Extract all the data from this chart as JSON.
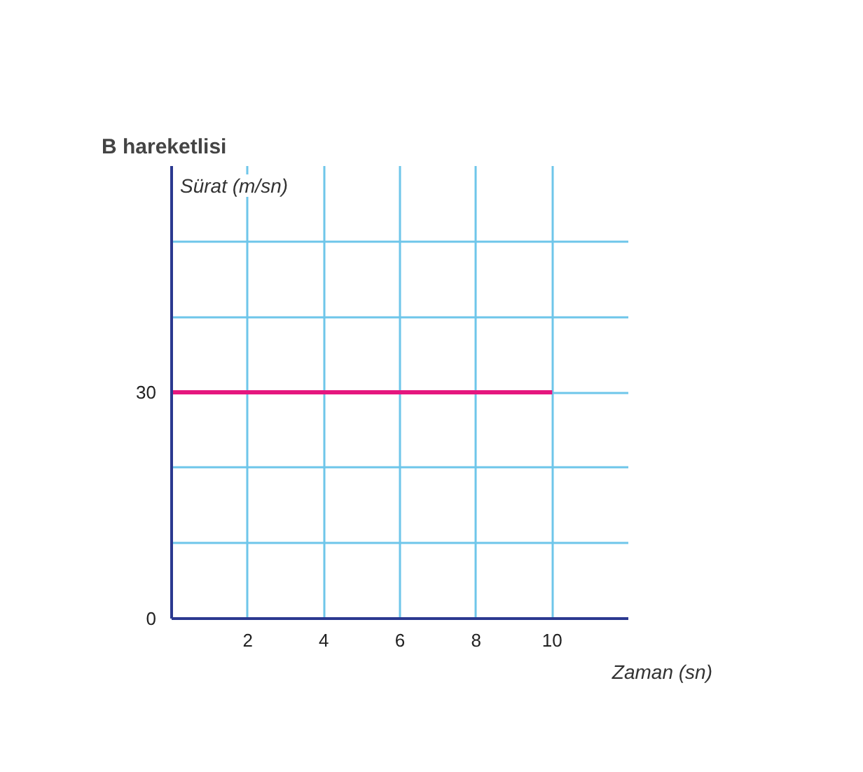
{
  "chart_data": {
    "type": "line",
    "title": "B hareketlisi",
    "xlabel": "Zaman (sn)",
    "ylabel": "Sürat (m/sn)",
    "x": [
      0,
      10
    ],
    "series": [
      {
        "color": "#e5177e",
        "values": [
          30,
          30
        ]
      }
    ],
    "xlim": [
      0,
      12
    ],
    "ylim": [
      0,
      60
    ],
    "xticks": [
      2,
      4,
      6,
      8,
      10
    ],
    "yticks": [
      0,
      {
        "value": 10,
        "label": null
      },
      {
        "value": 20,
        "label": null
      },
      30,
      {
        "value": 40,
        "label": null
      },
      {
        "value": 50,
        "label": null
      }
    ],
    "grid": true
  }
}
